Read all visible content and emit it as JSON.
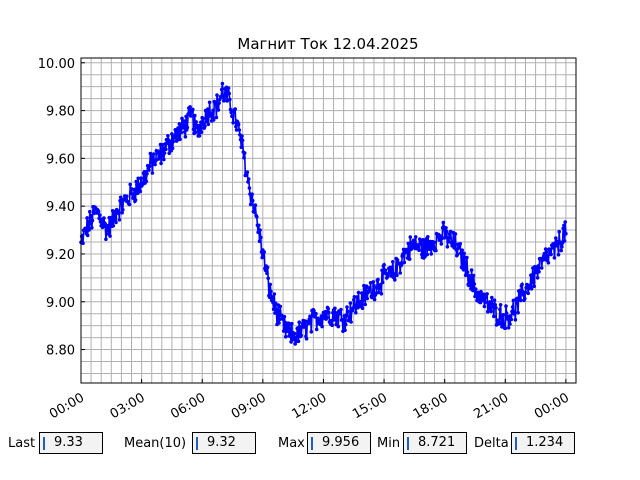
{
  "chart_data": {
    "type": "line",
    "title": "Магнит Ток 12.04.2025",
    "xlabel": "",
    "ylabel": "",
    "series_color": "#0000ff",
    "grid": true,
    "xlim": [
      "00:00",
      "24:30"
    ],
    "ylim": [
      8.66,
      10.02
    ],
    "x_ticks": [
      "00:00",
      "03:00",
      "06:00",
      "09:00",
      "12:00",
      "15:00",
      "18:00",
      "21:00",
      "00:00"
    ],
    "y_ticks": [
      "8.80",
      "9.00",
      "9.20",
      "9.40",
      "9.60",
      "9.80",
      "10.00"
    ],
    "anchors_x": [
      "00:00",
      "00:15",
      "00:45",
      "01:00",
      "01:15",
      "01:30",
      "01:45",
      "02:00",
      "02:30",
      "03:00",
      "03:30",
      "04:00",
      "04:30",
      "05:00",
      "05:30",
      "05:45",
      "06:00",
      "06:20",
      "06:45",
      "07:00",
      "07:20",
      "07:40",
      "08:00",
      "08:20",
      "08:40",
      "09:00",
      "09:20",
      "09:40",
      "10:00",
      "10:20",
      "10:40",
      "11:00",
      "11:30",
      "12:00",
      "12:30",
      "13:00",
      "13:30",
      "14:00",
      "14:30",
      "15:00",
      "15:30",
      "16:00",
      "16:30",
      "17:00",
      "17:30",
      "18:00",
      "18:30",
      "19:00",
      "19:30",
      "20:00",
      "20:30",
      "21:00",
      "21:30",
      "22:00",
      "22:30",
      "23:00",
      "23:30",
      "24:00"
    ],
    "anchors_y": [
      9.24,
      9.3,
      9.38,
      9.35,
      9.3,
      9.32,
      9.38,
      9.4,
      9.45,
      9.5,
      9.58,
      9.62,
      9.68,
      9.72,
      9.78,
      9.7,
      9.76,
      9.8,
      9.82,
      9.88,
      9.84,
      9.76,
      9.64,
      9.48,
      9.36,
      9.2,
      9.05,
      8.96,
      8.9,
      8.86,
      8.86,
      8.88,
      8.92,
      8.95,
      8.95,
      8.93,
      8.98,
      9.02,
      9.06,
      9.1,
      9.12,
      9.2,
      9.24,
      9.22,
      9.26,
      9.28,
      9.24,
      9.16,
      9.05,
      9.0,
      8.96,
      8.93,
      8.97,
      9.05,
      9.12,
      9.18,
      9.22,
      9.3
    ],
    "noise_amplitude": 0.045,
    "points_per_hour": 30
  },
  "stats": {
    "last_label": "Last",
    "last_value": "9.33",
    "mean_label": "Mean(10)",
    "mean_value": "9.32",
    "max_label": "Max",
    "max_value": "9.956",
    "min_label": "Min",
    "min_value": "8.721",
    "delta_label": "Delta",
    "delta_value": "1.234"
  }
}
